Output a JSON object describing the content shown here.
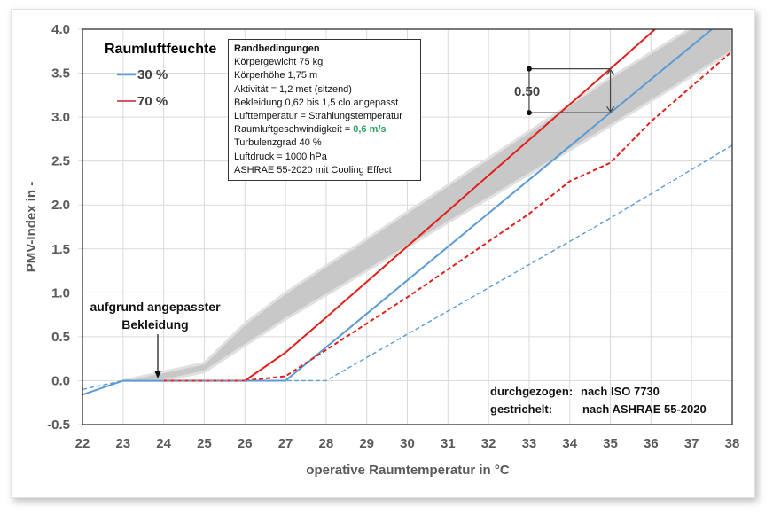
{
  "chart_data": {
    "type": "line",
    "xlabel": "operative Raumtemperatur  in °C",
    "ylabel": "PMV-Index in -",
    "xlim": [
      22,
      38
    ],
    "ylim": [
      -0.5,
      4.0
    ],
    "xticks": [
      "22",
      "23",
      "24",
      "25",
      "26",
      "27",
      "28",
      "29",
      "30",
      "31",
      "32",
      "33",
      "34",
      "35",
      "36",
      "37",
      "38"
    ],
    "yticks": [
      "4.0",
      "3.5",
      "3.0",
      "2.5",
      "2.0",
      "1.5",
      "1.0",
      "0.5",
      "0.0",
      "-0.5"
    ],
    "grid": true,
    "legend": {
      "title": "Raumluftfeuchte",
      "placement": "top-left",
      "items": [
        {
          "label": "30 %",
          "color": "#5b9bd5"
        },
        {
          "label": "70 %",
          "color": "#e0201b"
        }
      ]
    },
    "series": [
      {
        "humidity": "30 %",
        "style": "solid",
        "color": "#5b9bd5",
        "points": [
          [
            22,
            -0.16
          ],
          [
            23,
            0
          ],
          [
            27,
            0
          ],
          [
            28,
            0.38
          ],
          [
            35,
            3.05
          ],
          [
            37.5,
            4.0
          ]
        ]
      },
      {
        "humidity": "70 %",
        "style": "solid",
        "color": "#e0201b",
        "points": [
          [
            24,
            0
          ],
          [
            26,
            0
          ],
          [
            27,
            0.32
          ],
          [
            28,
            0.72
          ],
          [
            35,
            3.55
          ],
          [
            36.1,
            4.0
          ]
        ]
      },
      {
        "humidity": "70 %",
        "style": "dashed",
        "color": "#e0201b",
        "points": [
          [
            26,
            0
          ],
          [
            27,
            0.05
          ],
          [
            28,
            0.35
          ],
          [
            30,
            0.95
          ],
          [
            33,
            1.9
          ],
          [
            34,
            2.27
          ],
          [
            35,
            2.48
          ],
          [
            36,
            2.95
          ],
          [
            37,
            3.35
          ],
          [
            38,
            3.75
          ]
        ]
      },
      {
        "humidity": "30 %",
        "style": "dashed",
        "color": "#5b9bd5",
        "points": [
          [
            22,
            -0.1
          ],
          [
            23,
            0
          ],
          [
            28,
            0
          ],
          [
            35,
            1.85
          ],
          [
            38,
            2.68
          ]
        ]
      }
    ],
    "band": {
      "color": "#c8c8c8",
      "lower": [
        [
          23,
          0
        ],
        [
          24,
          0
        ],
        [
          25,
          0.1
        ],
        [
          26,
          0.4
        ],
        [
          27,
          0.7
        ],
        [
          35,
          2.9
        ],
        [
          38,
          3.75
        ]
      ],
      "upper": [
        [
          23,
          0
        ],
        [
          24,
          0.1
        ],
        [
          25,
          0.2
        ],
        [
          26,
          0.65
        ],
        [
          27,
          1.0
        ],
        [
          35,
          3.45
        ],
        [
          38,
          4.3
        ]
      ]
    },
    "annotations": {
      "difference_label": "0.50",
      "difference_at_x": 35,
      "difference_range": [
        3.05,
        3.55
      ],
      "clothing_note_line1": "aufgrund angepasster",
      "clothing_note_line2": "Bekleidung",
      "method_solid_label": "durchgezogen:",
      "method_solid_value": "nach ISO 7730",
      "method_dashed_label": "gestrichelt:",
      "method_dashed_value": "nach ASHRAE 55-2020"
    },
    "conditions": {
      "title": "Randbedingungen",
      "lines": [
        "Körpergewicht 75 kg",
        "Körperhöhe 1,75 m",
        "Aktivität = 1,2 met (sitzend)",
        "Bekleidung 0,62 bis 1,5 clo angepasst",
        "Lufttemperatur = Strahlungstemperatur"
      ],
      "air_speed_label": "Raumluftgeschwindigkeit = ",
      "air_speed_value": "0,6 m/s",
      "air_speed_color": "#2aa05a",
      "lines2": [
        "Turbulenzgrad 40 %",
        "Luftdruck = 1000  hPa",
        "ASHRAE 55-2020  mit Cooling Effect"
      ]
    }
  }
}
